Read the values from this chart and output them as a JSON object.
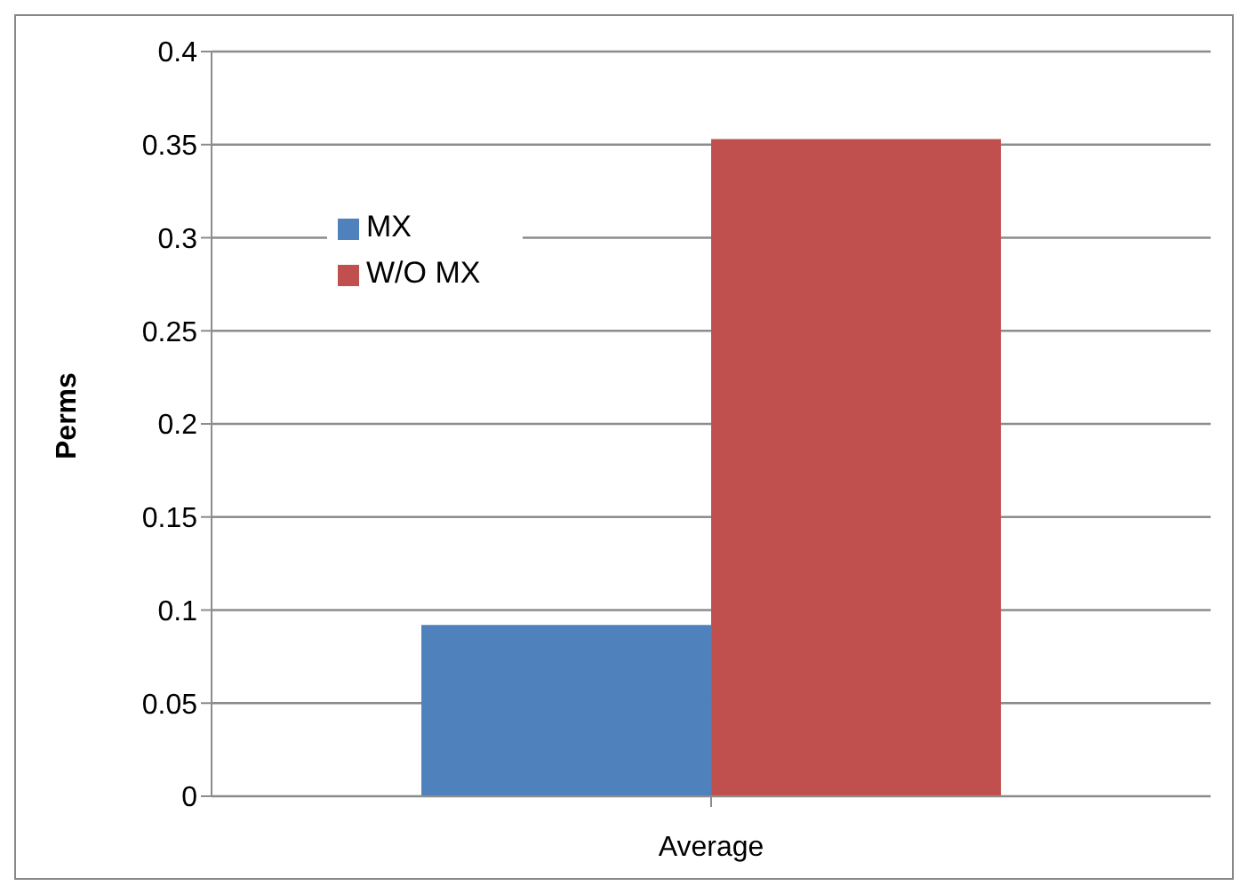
{
  "chart_data": {
    "type": "bar",
    "categories": [
      "Average"
    ],
    "series": [
      {
        "name": "MX",
        "color": "#4f81bd",
        "values": [
          0.092
        ]
      },
      {
        "name": "W/O MX",
        "color": "#c0504d",
        "values": [
          0.353
        ]
      }
    ],
    "ylabel": "Perms",
    "ylim": [
      0,
      0.4
    ],
    "yticks": [
      0,
      0.05,
      0.1,
      0.15,
      0.2,
      0.25,
      0.3,
      0.35,
      0.4
    ],
    "grid": "y",
    "legend": "top left"
  }
}
